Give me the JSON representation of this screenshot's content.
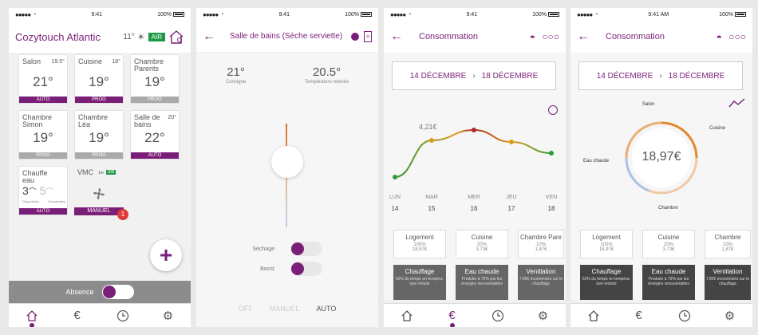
{
  "status": {
    "carrier": "●●●●●",
    "time": "9:41",
    "time_am": "9:41 AM",
    "battery": "100%"
  },
  "screen1": {
    "title": "Cozytouch Atlantic",
    "outside_temp": "11°",
    "air_badge": "AIR",
    "tiles": [
      {
        "name": "Salon",
        "set": "19.5°",
        "temp": "21°",
        "mode": "AUTO"
      },
      {
        "name": "Cuisine",
        "set": "18°",
        "temp": "19°",
        "mode": "PROG"
      },
      {
        "name": "Chambre Parents",
        "set": "",
        "temp": "19°",
        "mode": "PROG"
      },
      {
        "name": "Chambre Simon",
        "set": "",
        "temp": "19°",
        "mode": "PROG"
      },
      {
        "name": "Chambre Léa",
        "set": "",
        "temp": "19°",
        "mode": "PROG"
      },
      {
        "name": "Salle de bains",
        "set": "20°",
        "temp": "22°",
        "mode": "AUTO"
      }
    ],
    "water_tile": {
      "name": "Chauffe eau",
      "avail": "3",
      "demand": "5",
      "avail_label": "Disponibles",
      "demand_label": "Demandées",
      "mode": "AUTO"
    },
    "vmc_tile": {
      "name": "VMC",
      "speed": "1er",
      "air": "AIR",
      "mode": "MANUEL",
      "notif": "1"
    },
    "fab": "+",
    "absence_label": "Absence",
    "tabs": [
      "home-icon",
      "euro-icon",
      "clock-icon",
      "gear-icon"
    ]
  },
  "screen2": {
    "title": "Salle de bains (Sèche serviette)",
    "setpoint": "21°",
    "setpoint_label": "Consigne",
    "measured": "20.5°",
    "measured_label": "Température relevée",
    "sechage": "Séchage",
    "boost": "Boost",
    "modes": [
      "OFF",
      "MANUEL",
      "AUTO"
    ],
    "pager": "● ○"
  },
  "screen3": {
    "title": "Consommation",
    "date_from": "14 DÉCEMBRE",
    "date_to": "18 DÉCEMBRE",
    "peak_label": "4,21€",
    "days": [
      {
        "d": "LUN",
        "n": "14"
      },
      {
        "d": "MAR",
        "n": "15"
      },
      {
        "d": "MER",
        "n": "16"
      },
      {
        "d": "JEU",
        "n": "17"
      },
      {
        "d": "VEN",
        "n": "18"
      }
    ],
    "cards": [
      {
        "t": "Logement",
        "p": "100%",
        "e": "18,97€"
      },
      {
        "t": "Cuisine",
        "p": "20%",
        "e": "3,73€"
      },
      {
        "t": "Chambre Pare",
        "p": "10%",
        "e": "1,87€"
      }
    ],
    "cats": [
      {
        "t": "Chauffage",
        "d": "52% du temps en tempéra- ture réduite"
      },
      {
        "t": "Eau chaude",
        "d": "Produite à 79% par les énergies renouvelables"
      },
      {
        "t": "Ventilation",
        "d": "7,86€ économisés sur le chauffage"
      }
    ]
  },
  "screen4": {
    "title": "Consommation",
    "date_from": "14 DÉCEMBRE",
    "date_to": "18 DÉCEMBRE",
    "total": "18,97€",
    "labels": {
      "salon": "Salon",
      "cuisine": "Cuisine",
      "eau": "Eau chaude",
      "chambre": "Chambre"
    },
    "cards": [
      {
        "t": "Logement",
        "p": "100%",
        "e": "18,97€"
      },
      {
        "t": "Cuisine",
        "p": "20%",
        "e": "3,73€"
      },
      {
        "t": "Chambre",
        "p": "10%",
        "e": "1,87€"
      }
    ],
    "cats": [
      {
        "t": "Chauffage",
        "d": "52% du temps en tempéra- ture réduite"
      },
      {
        "t": "Eau chaude",
        "d": "Produite à 79% par les énergies renouvelables"
      },
      {
        "t": "Ventilation",
        "d": "7,86€ économisés sur le chauffage"
      }
    ]
  },
  "colors": {
    "accent": "#7a1f78",
    "green": "#1e9a47",
    "notif": "#e03b3b"
  }
}
